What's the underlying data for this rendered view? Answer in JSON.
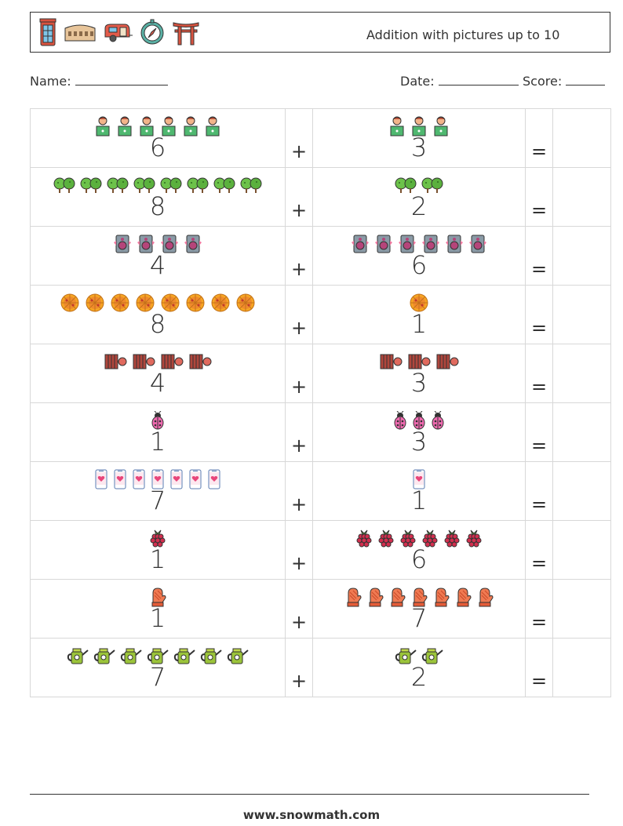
{
  "header": {
    "title": "Addition with pictures up to 10",
    "icons": [
      "phone-booth-icon",
      "colosseum-icon",
      "camper-trailer-icon",
      "compass-icon",
      "torii-gate-icon"
    ]
  },
  "meta": {
    "name_label": "Name:",
    "date_label": "Date:",
    "score_label": "Score:"
  },
  "operators": {
    "plus": "+",
    "equals": "="
  },
  "problems": [
    {
      "left": {
        "count": "6",
        "icon": "person-laptop-icon"
      },
      "right": {
        "count": "3",
        "icon": "person-laptop-icon"
      }
    },
    {
      "left": {
        "count": "8",
        "icon": "trees-icon"
      },
      "right": {
        "count": "2",
        "icon": "trees-icon"
      }
    },
    {
      "left": {
        "count": "4",
        "icon": "speaker-icon"
      },
      "right": {
        "count": "6",
        "icon": "speaker-icon"
      }
    },
    {
      "left": {
        "count": "8",
        "icon": "pizza-icon"
      },
      "right": {
        "count": "1",
        "icon": "pizza-icon"
      }
    },
    {
      "left": {
        "count": "4",
        "icon": "film-reel-icon"
      },
      "right": {
        "count": "3",
        "icon": "film-reel-icon"
      }
    },
    {
      "left": {
        "count": "1",
        "icon": "ladybug-icon"
      },
      "right": {
        "count": "3",
        "icon": "ladybug-icon"
      }
    },
    {
      "left": {
        "count": "7",
        "icon": "heart-phone-icon"
      },
      "right": {
        "count": "1",
        "icon": "heart-phone-icon"
      }
    },
    {
      "left": {
        "count": "1",
        "icon": "raspberry-icon"
      },
      "right": {
        "count": "6",
        "icon": "raspberry-icon"
      }
    },
    {
      "left": {
        "count": "1",
        "icon": "oven-mitt-icon"
      },
      "right": {
        "count": "7",
        "icon": "oven-mitt-icon"
      }
    },
    {
      "left": {
        "count": "7",
        "icon": "watering-can-icon"
      },
      "right": {
        "count": "2",
        "icon": "watering-can-icon"
      }
    }
  ],
  "footer": {
    "site": "www.snowmath.com"
  }
}
